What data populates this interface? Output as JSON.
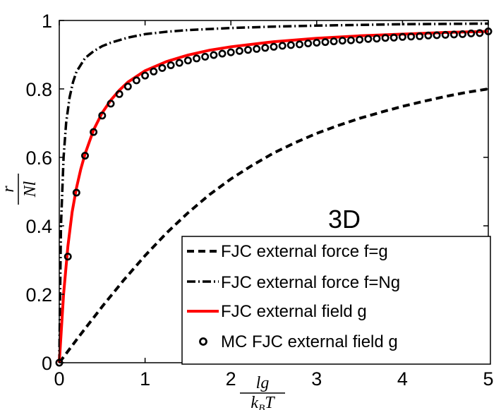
{
  "chart_data": {
    "type": "line",
    "title": "",
    "xlabel": {
      "numerator": "lg",
      "denominator": "k",
      "denominator_sub": "B",
      "denominator_tail": "T"
    },
    "ylabel": {
      "numerator": "r",
      "denominator": "Nl"
    },
    "xlim": [
      0,
      5
    ],
    "ylim": [
      0,
      1
    ],
    "xticks": [
      0,
      1,
      2,
      3,
      4,
      5
    ],
    "xtick_labels": [
      "0",
      "1",
      "2",
      "3",
      "4",
      "5"
    ],
    "yticks": [
      0,
      0.2,
      0.4,
      0.6,
      0.8,
      1
    ],
    "ytick_labels": [
      "0",
      "0.2",
      "0.4",
      "0.6",
      "0.8",
      "1"
    ],
    "grid": false,
    "annotation": "3D",
    "legend_position": "bottom-right",
    "series": [
      {
        "name": "FJC external force f=g",
        "style": "dashed",
        "color": "#000000",
        "x": [
          0,
          0.25,
          0.5,
          0.75,
          1,
          1.25,
          1.5,
          1.75,
          2,
          2.25,
          2.5,
          2.75,
          3,
          3.25,
          3.5,
          3.75,
          4,
          4.25,
          4.5,
          4.75,
          5
        ],
        "y": [
          0,
          0.083,
          0.164,
          0.241,
          0.313,
          0.379,
          0.438,
          0.491,
          0.537,
          0.577,
          0.613,
          0.643,
          0.67,
          0.693,
          0.714,
          0.732,
          0.749,
          0.764,
          0.778,
          0.79,
          0.8
        ]
      },
      {
        "name": "FJC external force f=Ng",
        "style": "dashdot",
        "color": "#000000",
        "x": [
          0,
          0.02,
          0.05,
          0.08,
          0.12,
          0.16,
          0.2,
          0.25,
          0.3,
          0.4,
          0.5,
          0.6,
          0.8,
          1,
          1.25,
          1.5,
          2,
          2.5,
          3,
          3.5,
          4,
          4.5,
          5
        ],
        "y": [
          0,
          0.4,
          0.6,
          0.7,
          0.775,
          0.82,
          0.85,
          0.87,
          0.89,
          0.91,
          0.925,
          0.935,
          0.95,
          0.96,
          0.967,
          0.972,
          0.978,
          0.982,
          0.985,
          0.987,
          0.989,
          0.99,
          0.991
        ]
      },
      {
        "name": "FJC external field g",
        "style": "solid",
        "color": "#ff0000",
        "x": [
          0,
          0.05,
          0.1,
          0.15,
          0.2,
          0.25,
          0.3,
          0.4,
          0.5,
          0.6,
          0.7,
          0.8,
          1,
          1.25,
          1.5,
          1.75,
          2,
          2.5,
          3,
          3.5,
          4,
          4.5,
          5
        ],
        "y": [
          0,
          0.2,
          0.34,
          0.44,
          0.51,
          0.565,
          0.61,
          0.68,
          0.73,
          0.767,
          0.796,
          0.82,
          0.853,
          0.88,
          0.899,
          0.913,
          0.923,
          0.938,
          0.948,
          0.955,
          0.96,
          0.965,
          0.968
        ]
      },
      {
        "name": "MC FJC external field g",
        "style": "circles",
        "color": "#000000",
        "x": [
          0,
          0.1,
          0.2,
          0.3,
          0.4,
          0.5,
          0.6,
          0.7,
          0.8,
          0.9,
          1,
          1.1,
          1.2,
          1.3,
          1.4,
          1.5,
          1.6,
          1.7,
          1.8,
          1.9,
          2,
          2.1,
          2.2,
          2.3,
          2.4,
          2.5,
          2.6,
          2.7,
          2.8,
          2.9,
          3,
          3.1,
          3.2,
          3.3,
          3.4,
          3.5,
          3.6,
          3.7,
          3.8,
          3.9,
          4,
          4.1,
          4.2,
          4.3,
          4.4,
          4.5,
          4.6,
          4.7,
          4.8,
          4.9,
          5
        ],
        "y": [
          0,
          0.31,
          0.497,
          0.605,
          0.674,
          0.722,
          0.757,
          0.785,
          0.807,
          0.825,
          0.839,
          0.851,
          0.861,
          0.869,
          0.876,
          0.883,
          0.889,
          0.894,
          0.899,
          0.903,
          0.907,
          0.911,
          0.914,
          0.917,
          0.92,
          0.923,
          0.926,
          0.928,
          0.93,
          0.933,
          0.935,
          0.937,
          0.939,
          0.941,
          0.942,
          0.944,
          0.946,
          0.947,
          0.949,
          0.95,
          0.952,
          0.953,
          0.954,
          0.956,
          0.957,
          0.958,
          0.959,
          0.96,
          0.962,
          0.963,
          0.968
        ]
      }
    ]
  }
}
